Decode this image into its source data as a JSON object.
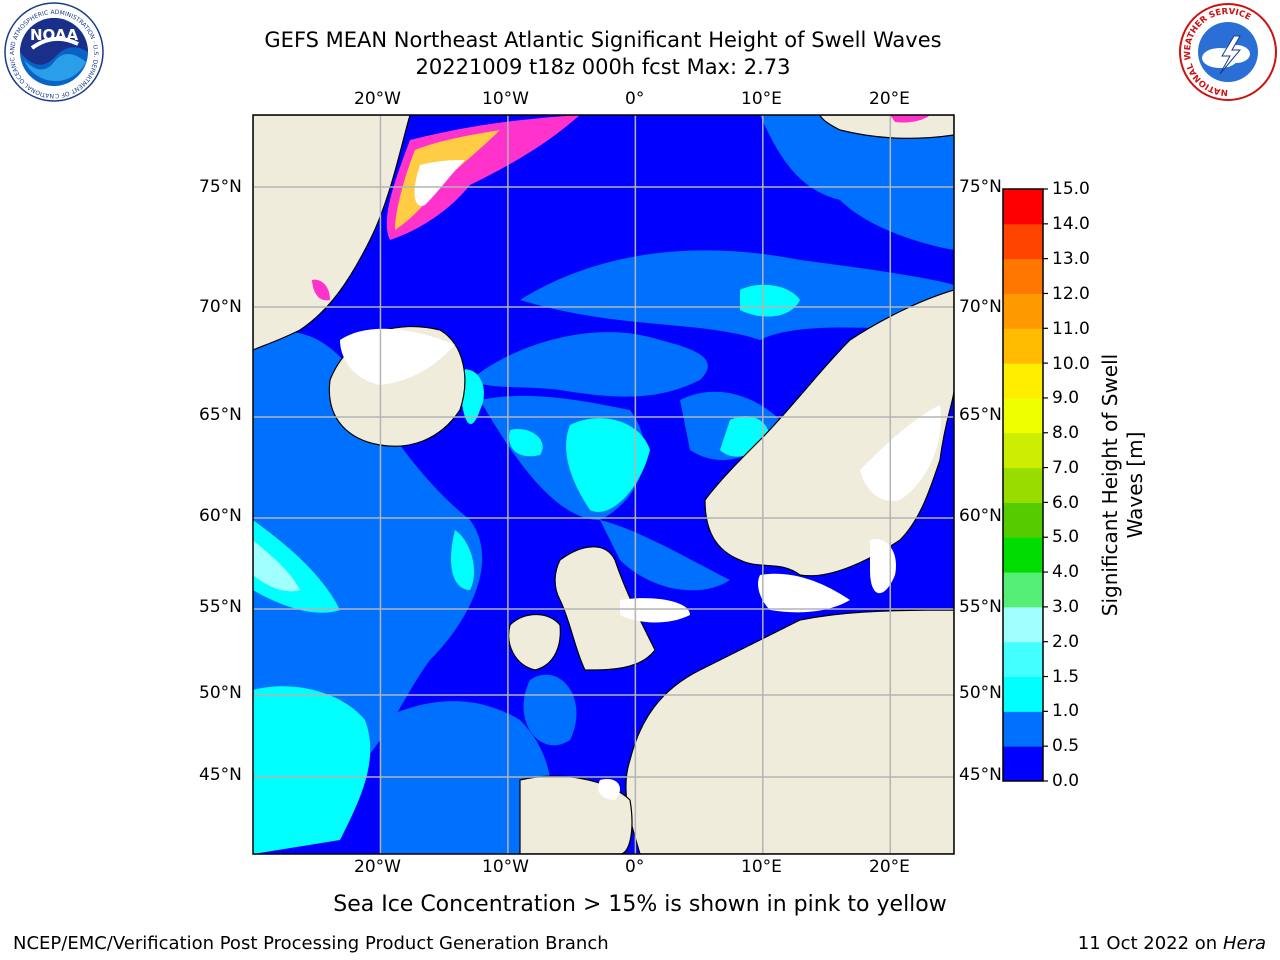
{
  "header": {
    "title_line1": "GEFS MEAN Northeast Atlantic Significant Height of Swell Waves",
    "title_line2": "20221009 t18z 000h fcst   Max: 2.73",
    "noaa_logo_text": "NOAA",
    "noaa_ring_text": "NATIONAL OCEANIC AND ATMOSPHERIC ADMINISTRATION · U.S. DEPARTMENT OF COMMERCE",
    "nws_ring_text": "NATIONAL WEATHER SERVICE"
  },
  "map": {
    "lon_labels": [
      "20°W",
      "10°W",
      "0°",
      "10°E",
      "20°E"
    ],
    "lat_labels": [
      "75°N",
      "70°N",
      "65°N",
      "60°N",
      "55°N",
      "50°N",
      "45°N"
    ],
    "lon_values": [
      -20,
      -10,
      0,
      10,
      20
    ],
    "lat_values": [
      75,
      70,
      65,
      60,
      55,
      50,
      45
    ],
    "extent": {
      "lon_min": -30,
      "lon_max": 25,
      "lat_min": 41,
      "lat_max": 78
    },
    "land_color": "#efecdc",
    "ocean_base_color": "#0000ff",
    "grid_color": "#b4b4b4"
  },
  "colorbar": {
    "label": "Significant Height of Swell Waves [m]",
    "ticks": [
      "15.0",
      "14.0",
      "13.0",
      "12.0",
      "11.0",
      "10.0",
      "9.0",
      "8.0",
      "7.0",
      "6.0",
      "5.0",
      "4.0",
      "3.0",
      "2.0",
      "1.5",
      "1.0",
      "0.5",
      "0.0"
    ],
    "colors_bottom_to_top": [
      "#0000ff",
      "#0070ff",
      "#00ffff",
      "#44ffff",
      "#a0ffff",
      "#55ee77",
      "#00dd00",
      "#55cc00",
      "#99dd00",
      "#ccee00",
      "#eeff00",
      "#ffee00",
      "#ffbb00",
      "#ff9900",
      "#ff7700",
      "#ff4400",
      "#ff0000"
    ]
  },
  "legend_note": "Sea Ice Concentration > 15% is shown in pink to yellow",
  "footer": {
    "left": "NCEP/EMC/Verification Post Processing Product Generation Branch",
    "right_prefix": "11 Oct 2022 on ",
    "right_host": "Hera"
  }
}
